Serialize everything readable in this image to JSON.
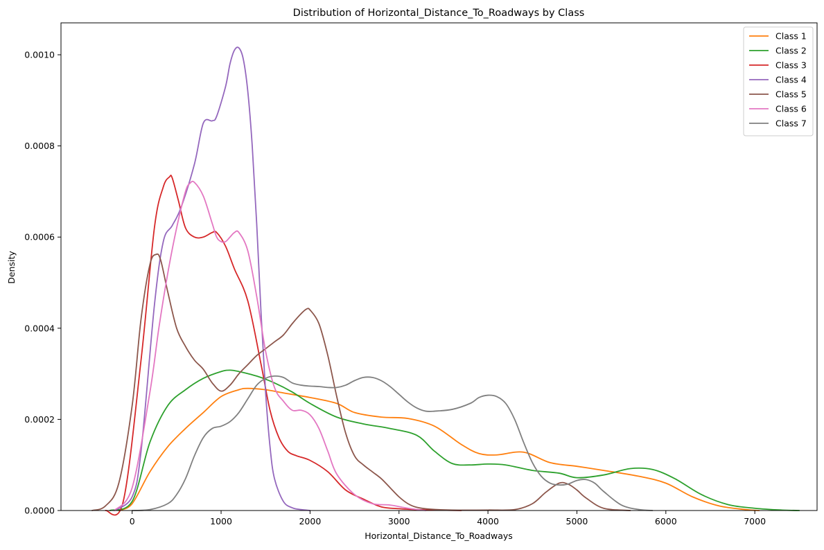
{
  "chart_data": {
    "type": "line",
    "title": "Distribution of Horizontal_Distance_To_Roadways by Class",
    "xlabel": "Horizontal_Distance_To_Roadways",
    "ylabel": "Density",
    "xlim": [
      -800,
      7700
    ],
    "ylim": [
      0,
      0.00107
    ],
    "xticks": [
      0,
      1000,
      2000,
      3000,
      4000,
      5000,
      6000,
      7000
    ],
    "xtick_labels": [
      "0",
      "1000",
      "2000",
      "3000",
      "4000",
      "5000",
      "6000",
      "7000"
    ],
    "yticks": [
      0,
      0.0002,
      0.0004,
      0.0006,
      0.0008,
      0.001
    ],
    "ytick_labels": [
      "0.0000",
      "0.0002",
      "0.0004",
      "0.0006",
      "0.0008",
      "0.0010"
    ],
    "grid": false,
    "legend_position": "top-right",
    "series": [
      {
        "name": "Class 1",
        "color": "#ff7f0e",
        "x": [
          -150,
          0,
          200,
          400,
          600,
          800,
          1000,
          1200,
          1300,
          1500,
          1700,
          2000,
          2300,
          2500,
          2800,
          3100,
          3400,
          3700,
          3900,
          4100,
          4400,
          4700,
          5000,
          5300,
          5700,
          6000,
          6300,
          6600,
          6900,
          7050
        ],
        "y": [
          0,
          1.5e-05,
          8.5e-05,
          0.00014,
          0.00018,
          0.000215,
          0.00025,
          0.000265,
          0.000268,
          0.000265,
          0.000258,
          0.000248,
          0.000235,
          0.000215,
          0.000205,
          0.000202,
          0.000185,
          0.000145,
          0.000125,
          0.000122,
          0.000128,
          0.000105,
          9.7e-05,
          8.8e-05,
          7.5e-05,
          6e-05,
          3e-05,
          1e-05,
          2e-06,
          0
        ]
      },
      {
        "name": "Class 2",
        "color": "#2ca02c",
        "x": [
          -250,
          0,
          200,
          400,
          600,
          800,
          1000,
          1100,
          1200,
          1400,
          1600,
          1800,
          2000,
          2300,
          2600,
          2900,
          3200,
          3400,
          3600,
          3800,
          4000,
          4200,
          4500,
          4800,
          5000,
          5300,
          5600,
          5850,
          6100,
          6400,
          6700,
          7000,
          7300,
          7500
        ],
        "y": [
          0,
          2e-05,
          0.00015,
          0.00023,
          0.000265,
          0.00029,
          0.000305,
          0.000308,
          0.000305,
          0.000295,
          0.00028,
          0.00026,
          0.000235,
          0.000205,
          0.00019,
          0.00018,
          0.000165,
          0.00013,
          0.000103,
          0.0001,
          0.000102,
          0.0001,
          8.8e-05,
          8.2e-05,
          7.2e-05,
          7.8e-05,
          9.2e-05,
          9e-05,
          7e-05,
          3.5e-05,
          1.3e-05,
          5e-06,
          1e-06,
          0
        ]
      },
      {
        "name": "Class 3",
        "color": "#d62728",
        "x": [
          -300,
          -100,
          100,
          250,
          350,
          420,
          450,
          520,
          600,
          700,
          800,
          900,
          950,
          1050,
          1150,
          1300,
          1450,
          1550,
          1650,
          1750,
          1850,
          2000,
          2200,
          2400,
          2600,
          2800,
          3000,
          3200,
          3400,
          3700
        ],
        "y": [
          0,
          2e-05,
          0.00033,
          0.00062,
          0.00071,
          0.000732,
          0.00073,
          0.00068,
          0.00062,
          0.0006,
          0.0006,
          0.00061,
          0.00061,
          0.00058,
          0.00053,
          0.00046,
          0.00032,
          0.00022,
          0.00016,
          0.00013,
          0.00012,
          0.00011,
          8.5e-05,
          4.5e-05,
          2.5e-05,
          8e-06,
          4e-06,
          2e-06,
          1e-06,
          0
        ]
      },
      {
        "name": "Class 4",
        "color": "#9467bd",
        "x": [
          -200,
          0,
          100,
          250,
          350,
          450,
          550,
          700,
          800,
          900,
          950,
          1050,
          1100,
          1150,
          1200,
          1250,
          1300,
          1350,
          1400,
          1450,
          1500,
          1550,
          1600,
          1700,
          1800,
          1900,
          2000
        ],
        "y": [
          0,
          3e-05,
          0.00013,
          0.00045,
          0.00059,
          0.000625,
          0.000665,
          0.00076,
          0.00085,
          0.000855,
          0.000865,
          0.00093,
          0.00098,
          0.00101,
          0.001015,
          0.00099,
          0.00092,
          0.0008,
          0.00063,
          0.00043,
          0.00026,
          0.00014,
          7e-05,
          2e-05,
          6e-06,
          2e-06,
          0
        ]
      },
      {
        "name": "Class 5",
        "color": "#8c564b",
        "x": [
          -450,
          -300,
          -150,
          0,
          100,
          200,
          270,
          320,
          400,
          500,
          600,
          700,
          800,
          900,
          1000,
          1100,
          1200,
          1300,
          1400,
          1500,
          1600,
          1700,
          1800,
          1900,
          1960,
          2000,
          2100,
          2200,
          2300,
          2400,
          2500,
          2600,
          2700,
          2800,
          2900,
          3000,
          3100,
          3200,
          3350,
          3600,
          4000,
          4300,
          4500,
          4650,
          4800,
          4900,
          5000,
          5100,
          5300,
          5600
        ],
        "y": [
          0,
          1e-05,
          6e-05,
          0.00023,
          0.00042,
          0.00054,
          0.000562,
          0.00055,
          0.00048,
          0.0004,
          0.00036,
          0.00033,
          0.00031,
          0.00028,
          0.000262,
          0.000275,
          0.0003,
          0.00032,
          0.00034,
          0.000355,
          0.00037,
          0.000385,
          0.00041,
          0.000432,
          0.000442,
          0.00044,
          0.00041,
          0.00034,
          0.00025,
          0.00017,
          0.00012,
          0.0001,
          8.5e-05,
          7e-05,
          5e-05,
          3e-05,
          1.5e-05,
          7e-06,
          3e-06,
          1e-06,
          1e-06,
          2e-06,
          1.5e-05,
          4e-05,
          6e-05,
          5.8e-05,
          4.5e-05,
          2.8e-05,
          5e-06,
          0
        ]
      },
      {
        "name": "Class 6",
        "color": "#e377c2",
        "x": [
          -200,
          0,
          200,
          300,
          400,
          500,
          600,
          650,
          700,
          800,
          900,
          950,
          1000,
          1050,
          1100,
          1150,
          1200,
          1300,
          1400,
          1500,
          1600,
          1700,
          1800,
          1900,
          2000,
          2100,
          2200,
          2300,
          2500,
          2700,
          2900,
          3100,
          3300
        ],
        "y": [
          0,
          5e-05,
          0.00026,
          0.0004,
          0.00052,
          0.00062,
          0.0007,
          0.000718,
          0.00072,
          0.00069,
          0.00063,
          0.0006,
          0.00059,
          0.00059,
          0.0006,
          0.00061,
          0.00061,
          0.00057,
          0.00047,
          0.00035,
          0.00027,
          0.00024,
          0.00022,
          0.00022,
          0.00021,
          0.00018,
          0.00013,
          8e-05,
          3.5e-05,
          1.5e-05,
          1.2e-05,
          5e-06,
          0
        ]
      },
      {
        "name": "Class 7",
        "color": "#7f7f7f",
        "x": [
          0,
          200,
          400,
          500,
          600,
          700,
          800,
          900,
          1000,
          1100,
          1200,
          1300,
          1400,
          1500,
          1600,
          1700,
          1800,
          1900,
          2000,
          2100,
          2200,
          2300,
          2400,
          2500,
          2600,
          2700,
          2800,
          2900,
          3000,
          3100,
          3200,
          3300,
          3400,
          3600,
          3800,
          3900,
          4000,
          4100,
          4200,
          4300,
          4400,
          4500,
          4600,
          4700,
          4800,
          4900,
          5000,
          5100,
          5200,
          5300,
          5500,
          5700,
          5850
        ],
        "y": [
          0,
          2e-06,
          1.5e-05,
          3.5e-05,
          7e-05,
          0.00012,
          0.00016,
          0.00018,
          0.000185,
          0.000195,
          0.000215,
          0.000245,
          0.000275,
          0.00029,
          0.000295,
          0.000292,
          0.00028,
          0.000275,
          0.000273,
          0.000272,
          0.00027,
          0.00027,
          0.000275,
          0.000285,
          0.000292,
          0.000292,
          0.000285,
          0.000272,
          0.000255,
          0.000238,
          0.000225,
          0.000218,
          0.000218,
          0.000222,
          0.000235,
          0.000248,
          0.000253,
          0.00025,
          0.000235,
          0.0002,
          0.00015,
          0.000105,
          7.5e-05,
          6e-05,
          5.6e-05,
          5.8e-05,
          6.6e-05,
          6.8e-05,
          6e-05,
          4.2e-05,
          1.2e-05,
          2e-06,
          0
        ]
      }
    ]
  }
}
